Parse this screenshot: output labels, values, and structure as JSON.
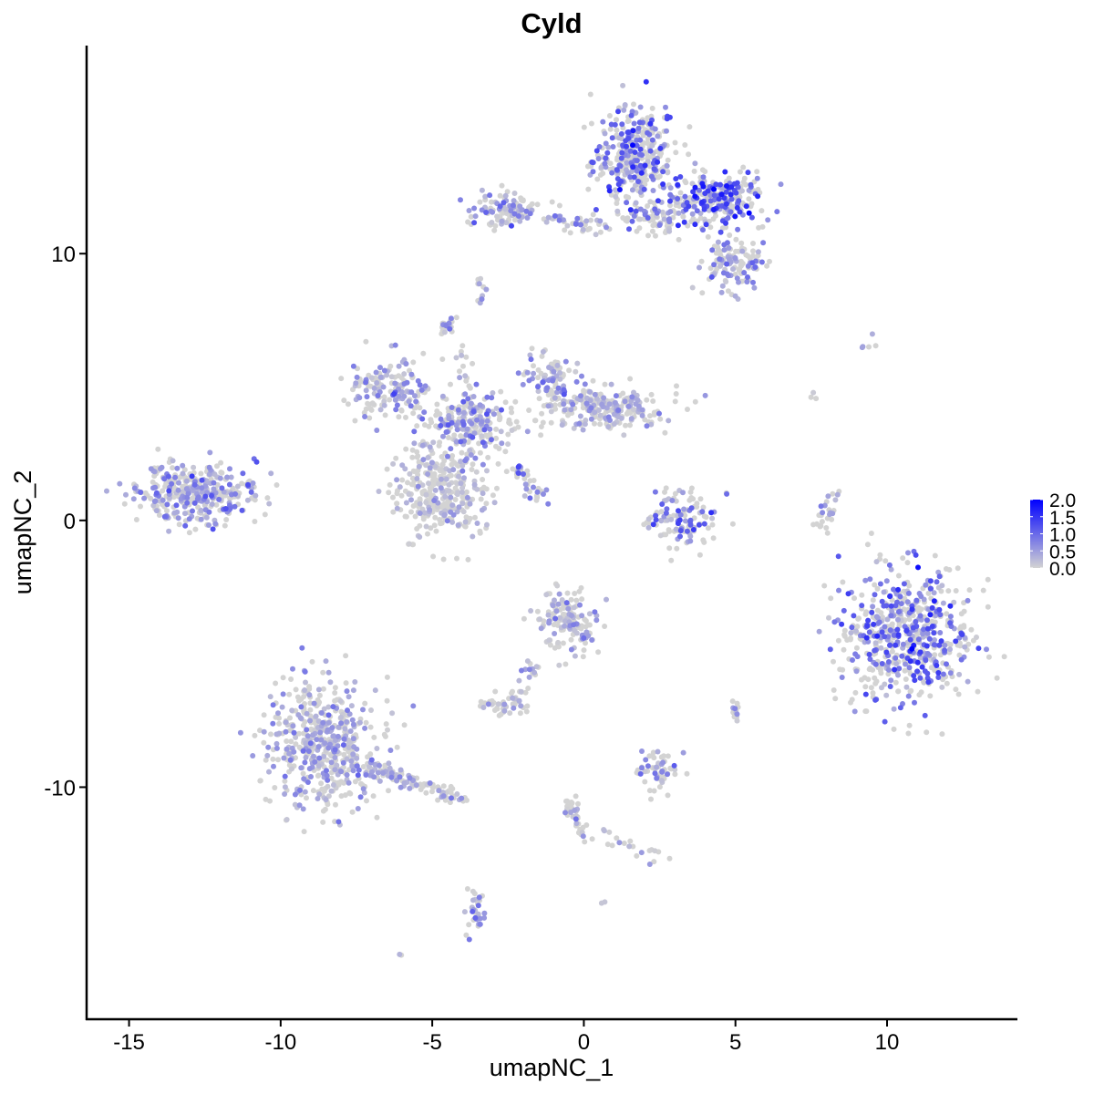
{
  "chart_data": {
    "type": "scatter",
    "title": "Cyld",
    "xlabel": "umapNC_1",
    "ylabel": "umapNC_2",
    "xlim": [
      -16.4,
      14.3
    ],
    "ylim": [
      -18.7,
      17.8
    ],
    "xticks": [
      -15,
      -10,
      -5,
      0,
      5,
      10
    ],
    "yticks": [
      -10,
      0,
      10
    ],
    "grid": false,
    "color_scale": {
      "low": "#D3D3D3",
      "high": "#0000FF",
      "min": 0,
      "max": 2.0,
      "ticks": [
        "0.0",
        "0.5",
        "1.0",
        "1.5",
        "2.0"
      ]
    },
    "legend_position": "right",
    "clusters": [
      {
        "center": [
          1.7,
          13.5
        ],
        "spread": [
          0.7,
          1.1
        ],
        "cells": 380,
        "mean_expression": 0.9
      },
      {
        "center": [
          4.4,
          12.0
        ],
        "spread": [
          0.8,
          0.5
        ],
        "cells": 260,
        "mean_expression": 1.1
      },
      {
        "center": [
          5.0,
          9.6
        ],
        "spread": [
          0.5,
          0.5
        ],
        "cells": 120,
        "mean_expression": 0.6
      },
      {
        "center": [
          -2.5,
          11.6
        ],
        "spread": [
          0.5,
          0.35
        ],
        "cells": 110,
        "mean_expression": 0.6
      },
      {
        "from": [
          -1.2,
          11.3
        ],
        "to": [
          0.8,
          11.0
        ],
        "cells": 40,
        "mean_expression": 0.4
      },
      {
        "center": [
          2.5,
          11.3
        ],
        "spread": [
          0.6,
          0.3
        ],
        "cells": 60,
        "mean_expression": 0.5
      },
      {
        "center": [
          -3.4,
          8.5
        ],
        "spread": [
          0.1,
          0.25
        ],
        "cells": 12,
        "mean_expression": 0.5
      },
      {
        "center": [
          -4.5,
          7.3
        ],
        "spread": [
          0.12,
          0.15
        ],
        "cells": 25,
        "mean_expression": 0.7
      },
      {
        "center": [
          -6.4,
          5.0
        ],
        "spread": [
          0.7,
          0.6
        ],
        "cells": 160,
        "mean_expression": 0.5
      },
      {
        "center": [
          -3.8,
          3.6
        ],
        "spread": [
          0.8,
          0.6
        ],
        "cells": 220,
        "mean_expression": 0.6
      },
      {
        "center": [
          -4.7,
          1.0
        ],
        "spread": [
          0.8,
          0.8
        ],
        "cells": 320,
        "mean_expression": 0.2
      },
      {
        "center": [
          0.7,
          4.2
        ],
        "spread": [
          1.0,
          0.4
        ],
        "cells": 230,
        "mean_expression": 0.3
      },
      {
        "center": [
          -1.1,
          5.3
        ],
        "spread": [
          0.35,
          0.6
        ],
        "cells": 90,
        "mean_expression": 0.5
      },
      {
        "from": [
          -2.4,
          2.0
        ],
        "to": [
          -1.2,
          0.7
        ],
        "cells": 35,
        "mean_expression": 0.8
      },
      {
        "from": [
          -4.2,
          6.6
        ],
        "to": [
          -3.6,
          3.8
        ],
        "cells": 20,
        "mean_expression": 0.4
      },
      {
        "center": [
          -12.8,
          1.0
        ],
        "spread": [
          1.0,
          0.55
        ],
        "cells": 360,
        "mean_expression": 0.6
      },
      {
        "center": [
          3.2,
          0.0
        ],
        "spread": [
          0.6,
          0.5
        ],
        "cells": 120,
        "mean_expression": 0.8
      },
      {
        "center": [
          10.6,
          -4.3
        ],
        "spread": [
          1.1,
          1.2
        ],
        "cells": 620,
        "mean_expression": 0.9
      },
      {
        "center": [
          -8.6,
          -8.4
        ],
        "spread": [
          0.9,
          1.2
        ],
        "cells": 520,
        "mean_expression": 0.4
      },
      {
        "from": [
          -7.2,
          -9.2
        ],
        "to": [
          -4.0,
          -10.4
        ],
        "cells": 110,
        "mean_expression": 0.4
      },
      {
        "center": [
          -0.5,
          -3.8
        ],
        "spread": [
          0.5,
          0.6
        ],
        "cells": 150,
        "mean_expression": 0.3
      },
      {
        "from": [
          -1.6,
          -5.3
        ],
        "to": [
          -2.2,
          -6.4
        ],
        "cells": 20,
        "mean_expression": 0.4
      },
      {
        "center": [
          -2.6,
          -6.9
        ],
        "spread": [
          0.4,
          0.2
        ],
        "cells": 45,
        "mean_expression": 0.2
      },
      {
        "center": [
          2.4,
          -9.4
        ],
        "spread": [
          0.35,
          0.35
        ],
        "cells": 60,
        "mean_expression": 0.5
      },
      {
        "center": [
          5.0,
          -7.2
        ],
        "spread": [
          0.1,
          0.2
        ],
        "cells": 15,
        "mean_expression": 0.4
      },
      {
        "from": [
          7.8,
          -0.3
        ],
        "to": [
          8.3,
          1.2
        ],
        "cells": 25,
        "mean_expression": 0.5
      },
      {
        "from": [
          -0.5,
          -10.5
        ],
        "to": [
          0.0,
          -12.0
        ],
        "cells": 40,
        "mean_expression": 0.2
      },
      {
        "from": [
          0.6,
          -11.7
        ],
        "to": [
          2.5,
          -12.6
        ],
        "cells": 20,
        "mean_expression": 0.3
      },
      {
        "center": [
          -3.6,
          -14.6
        ],
        "spread": [
          0.15,
          0.6
        ],
        "cells": 35,
        "mean_expression": 0.6
      },
      {
        "center": [
          9.5,
          6.6
        ],
        "spread": [
          0.2,
          0.15
        ],
        "cells": 5,
        "mean_expression": 0.6
      },
      {
        "center": [
          7.6,
          4.7
        ],
        "spread": [
          0.05,
          0.1
        ],
        "cells": 3,
        "mean_expression": 0.1
      },
      {
        "center": [
          -6.0,
          -16.3
        ],
        "spread": [
          0.05,
          0.05
        ],
        "cells": 2,
        "mean_expression": 0.2
      },
      {
        "center": [
          0.6,
          -14.3
        ],
        "spread": [
          0.05,
          0.05
        ],
        "cells": 2,
        "mean_expression": 0.5
      }
    ]
  }
}
